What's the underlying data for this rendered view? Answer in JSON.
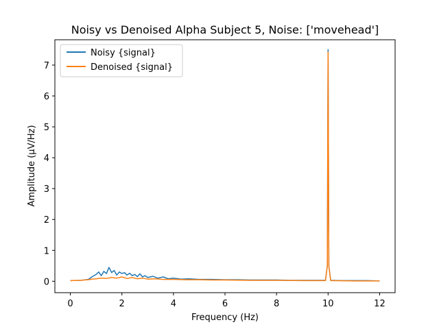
{
  "chart_data": {
    "type": "line",
    "title": "Noisy vs Denoised Alpha Subject 5, Noise: ['movehead']",
    "xlabel": "Frequency (Hz)",
    "ylabel": "Amplitude (μV/Hz)",
    "xlim": [
      -0.6,
      12.6
    ],
    "ylim": [
      -0.37,
      7.82
    ],
    "xticks": [
      0,
      2,
      4,
      6,
      8,
      10,
      12
    ],
    "yticks": [
      0,
      1,
      2,
      3,
      4,
      5,
      6,
      7
    ],
    "grid": false,
    "legend": "upper-left",
    "series": [
      {
        "name": "Noisy {signal}",
        "color": "#1f77b4",
        "x": [
          0,
          0.4,
          0.7,
          0.85,
          1.0,
          1.1,
          1.2,
          1.3,
          1.4,
          1.5,
          1.6,
          1.7,
          1.8,
          1.9,
          2.0,
          2.1,
          2.2,
          2.3,
          2.4,
          2.5,
          2.6,
          2.7,
          2.8,
          2.9,
          3.0,
          3.2,
          3.4,
          3.6,
          3.8,
          4.0,
          4.3,
          4.6,
          5.0,
          5.5,
          6.0,
          6.5,
          7.0,
          7.5,
          8.0,
          8.5,
          9.0,
          9.5,
          9.9,
          9.97,
          10.0,
          10.03,
          10.1,
          10.5,
          11.0,
          11.5,
          12.0
        ],
        "y": [
          0.02,
          0.03,
          0.06,
          0.15,
          0.22,
          0.3,
          0.18,
          0.32,
          0.25,
          0.45,
          0.28,
          0.35,
          0.2,
          0.3,
          0.25,
          0.28,
          0.2,
          0.26,
          0.18,
          0.22,
          0.15,
          0.24,
          0.14,
          0.18,
          0.12,
          0.16,
          0.1,
          0.14,
          0.08,
          0.1,
          0.07,
          0.08,
          0.06,
          0.06,
          0.05,
          0.05,
          0.04,
          0.04,
          0.04,
          0.03,
          0.03,
          0.03,
          0.03,
          0.5,
          7.5,
          0.5,
          0.03,
          0.02,
          0.02,
          0.02,
          0.01
        ]
      },
      {
        "name": "Denoised {signal}",
        "color": "#ff7f0e",
        "x": [
          0,
          0.4,
          0.7,
          0.85,
          1.0,
          1.2,
          1.4,
          1.6,
          1.8,
          2.0,
          2.2,
          2.4,
          2.6,
          2.8,
          3.0,
          3.3,
          3.6,
          4.0,
          4.5,
          5.0,
          5.5,
          6.0,
          7.0,
          8.0,
          9.0,
          9.9,
          9.97,
          10.0,
          10.03,
          10.1,
          11.0,
          12.0
        ],
        "y": [
          0.02,
          0.03,
          0.05,
          0.07,
          0.08,
          0.1,
          0.09,
          0.12,
          0.1,
          0.14,
          0.09,
          0.12,
          0.08,
          0.1,
          0.07,
          0.08,
          0.06,
          0.06,
          0.05,
          0.05,
          0.04,
          0.04,
          0.03,
          0.03,
          0.02,
          0.02,
          0.5,
          7.42,
          0.5,
          0.02,
          0.01,
          0.01
        ]
      }
    ]
  }
}
